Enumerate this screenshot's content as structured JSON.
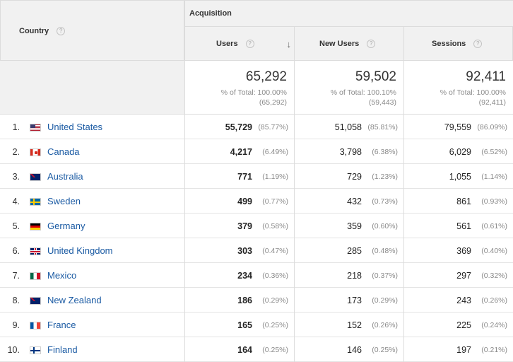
{
  "header": {
    "country_label": "Country",
    "help_glyph": "?",
    "group_label": "Acquisition",
    "columns": [
      {
        "label": "Users",
        "sorted": "descending"
      },
      {
        "label": "New Users"
      },
      {
        "label": "Sessions"
      }
    ],
    "sort_arrow": "↓"
  },
  "totals": [
    {
      "value": "65,292",
      "pct": "% of Total: 100.00%",
      "abs": "(65,292)"
    },
    {
      "value": "59,502",
      "pct": "% of Total: 100.10%",
      "abs": "(59,443)"
    },
    {
      "value": "92,411",
      "pct": "% of Total: 100.00%",
      "abs": "(92,411)"
    }
  ],
  "rows": [
    {
      "idx": "1.",
      "flag": "us-flag-icon",
      "country": "United States",
      "users": "55,729",
      "users_pct": "(85.77%)",
      "new": "51,058",
      "new_pct": "(85.81%)",
      "sess": "79,559",
      "sess_pct": "(86.09%)"
    },
    {
      "idx": "2.",
      "flag": "ca-flag-icon",
      "country": "Canada",
      "users": "4,217",
      "users_pct": "(6.49%)",
      "new": "3,798",
      "new_pct": "(6.38%)",
      "sess": "6,029",
      "sess_pct": "(6.52%)"
    },
    {
      "idx": "3.",
      "flag": "au-flag-icon",
      "country": "Australia",
      "users": "771",
      "users_pct": "(1.19%)",
      "new": "729",
      "new_pct": "(1.23%)",
      "sess": "1,055",
      "sess_pct": "(1.14%)"
    },
    {
      "idx": "4.",
      "flag": "se-flag-icon",
      "country": "Sweden",
      "users": "499",
      "users_pct": "(0.77%)",
      "new": "432",
      "new_pct": "(0.73%)",
      "sess": "861",
      "sess_pct": "(0.93%)"
    },
    {
      "idx": "5.",
      "flag": "de-flag-icon",
      "country": "Germany",
      "users": "379",
      "users_pct": "(0.58%)",
      "new": "359",
      "new_pct": "(0.60%)",
      "sess": "561",
      "sess_pct": "(0.61%)"
    },
    {
      "idx": "6.",
      "flag": "gb-flag-icon",
      "country": "United Kingdom",
      "users": "303",
      "users_pct": "(0.47%)",
      "new": "285",
      "new_pct": "(0.48%)",
      "sess": "369",
      "sess_pct": "(0.40%)"
    },
    {
      "idx": "7.",
      "flag": "mx-flag-icon",
      "country": "Mexico",
      "users": "234",
      "users_pct": "(0.36%)",
      "new": "218",
      "new_pct": "(0.37%)",
      "sess": "297",
      "sess_pct": "(0.32%)"
    },
    {
      "idx": "8.",
      "flag": "nz-flag-icon",
      "country": "New Zealand",
      "users": "186",
      "users_pct": "(0.29%)",
      "new": "173",
      "new_pct": "(0.29%)",
      "sess": "243",
      "sess_pct": "(0.26%)"
    },
    {
      "idx": "9.",
      "flag": "fr-flag-icon",
      "country": "France",
      "users": "165",
      "users_pct": "(0.25%)",
      "new": "152",
      "new_pct": "(0.26%)",
      "sess": "225",
      "sess_pct": "(0.24%)"
    },
    {
      "idx": "10.",
      "flag": "fi-flag-icon",
      "country": "Finland",
      "users": "164",
      "users_pct": "(0.25%)",
      "new": "146",
      "new_pct": "(0.25%)",
      "sess": "197",
      "sess_pct": "(0.21%)"
    }
  ],
  "colors": {
    "link": "#1a5aa3",
    "header_bg": "#f1f1f1",
    "border": "#dcdcdc",
    "muted": "#8a8a8a"
  }
}
